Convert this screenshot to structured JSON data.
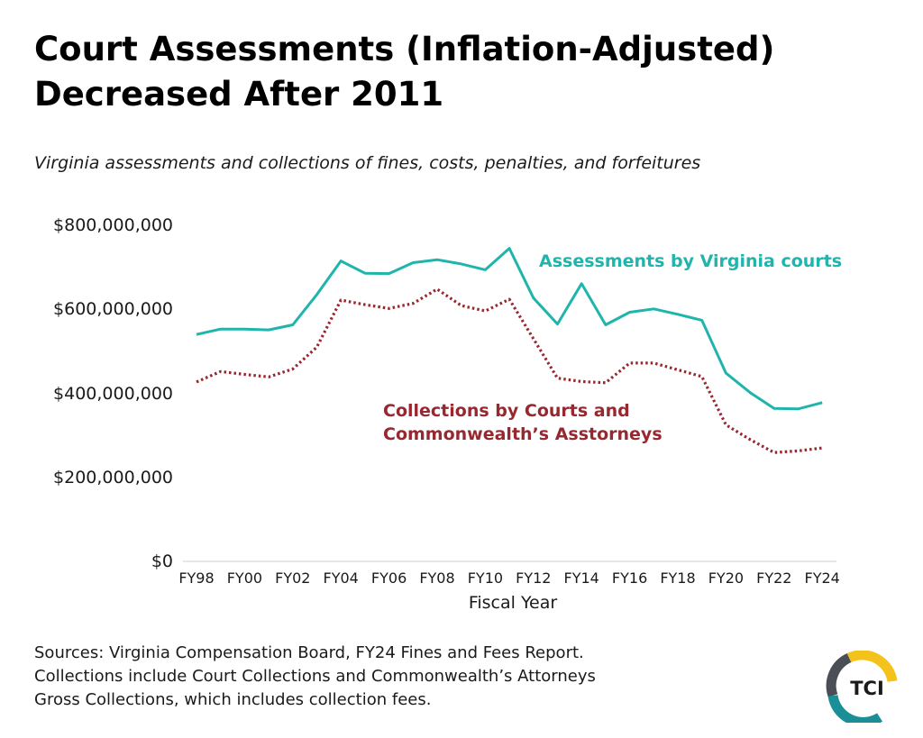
{
  "title_lines": [
    "Court Assessments (Inflation-Adjusted)",
    "Decreased After 2011"
  ],
  "subtitle": "Virginia assessments and collections of fines, costs, penalties, and forfeitures",
  "sources": [
    "Sources: Virginia Compensation Board, FY24 Fines and Fees Report.",
    "Collections include Court Collections and Commonwealth’s Attorneys",
    "Gross Collections, which includes collection fees."
  ],
  "logo_text": "TCI",
  "colors": {
    "assessments": "#1fb5ac",
    "collections": "#98282f",
    "axis": "#cccccc",
    "logo_yellow": "#f3c21b",
    "logo_teal": "#1a8f98",
    "logo_gray": "#4a4f55"
  },
  "chart_data": {
    "type": "line",
    "title": "",
    "xlabel": "Fiscal Year",
    "ylabel": "",
    "ylim": [
      0,
      800000000
    ],
    "y_ticks": [
      0,
      200000000,
      400000000,
      600000000,
      800000000
    ],
    "y_tick_labels": [
      "$0",
      "$200,000,000",
      "$400,000,000",
      "$600,000,000",
      "$800,000,000"
    ],
    "x": [
      "FY98",
      "FY99",
      "FY00",
      "FY01",
      "FY02",
      "FY03",
      "FY04",
      "FY05",
      "FY06",
      "FY07",
      "FY08",
      "FY09",
      "FY10",
      "FY11",
      "FY12",
      "FY13",
      "FY14",
      "FY15",
      "FY16",
      "FY17",
      "FY18",
      "FY19",
      "FY20",
      "FY21",
      "FY22",
      "FY23",
      "FY24"
    ],
    "x_tick_labels": [
      "FY98",
      "FY00",
      "FY02",
      "FY04",
      "FY06",
      "FY08",
      "FY10",
      "FY12",
      "FY14",
      "FY16",
      "FY18",
      "FY20",
      "FY22",
      "FY24"
    ],
    "grid": false,
    "legend": "direct labels",
    "series": [
      {
        "name": "Assessments by Virginia courts",
        "style": "solid",
        "values": [
          540000000,
          553000000,
          553000000,
          551000000,
          563000000,
          635000000,
          715000000,
          686000000,
          685000000,
          711000000,
          718000000,
          708000000,
          694000000,
          745000000,
          627000000,
          565000000,
          661000000,
          563000000,
          593000000,
          601000000,
          588000000,
          574000000,
          448000000,
          402000000,
          364000000,
          363000000,
          378000000
        ]
      },
      {
        "name": "Collections by Courts and Commonwealth’s Asstorneys",
        "name_lines": [
          "Collections by Courts and",
          "Commonwealth’s Asstorneys"
        ],
        "style": "dotted",
        "values": [
          427000000,
          452000000,
          445000000,
          439000000,
          458000000,
          510000000,
          622000000,
          611000000,
          602000000,
          614000000,
          648000000,
          609000000,
          596000000,
          624000000,
          530000000,
          436000000,
          428000000,
          425000000,
          472000000,
          472000000,
          456000000,
          440000000,
          325000000,
          290000000,
          259000000,
          263000000,
          270000000
        ]
      }
    ]
  }
}
